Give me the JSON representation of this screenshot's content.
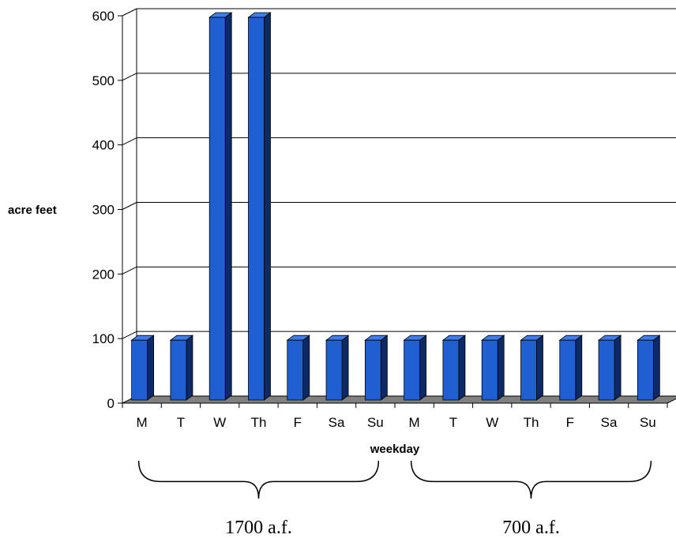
{
  "chart_data": {
    "type": "bar",
    "title": "",
    "xlabel": "weekday",
    "ylabel": "acre feet",
    "categories": [
      "M",
      "T",
      "W",
      "Th",
      "F",
      "Sa",
      "Su",
      "M",
      "T",
      "W",
      "Th",
      "F",
      "Sa",
      "Su"
    ],
    "values": [
      100,
      100,
      600,
      600,
      100,
      100,
      100,
      100,
      100,
      100,
      100,
      100,
      100,
      100
    ],
    "ylim": [
      0,
      600
    ],
    "yticks": [
      "0",
      "100",
      "200",
      "300",
      "400",
      "500",
      "600"
    ],
    "grid": true,
    "legend": "none",
    "bar_color": "#1f5fd1",
    "groups": [
      {
        "label": "1700 a.f.",
        "start": 0,
        "end": 6
      },
      {
        "label": "700 a.f.",
        "start": 7,
        "end": 13
      }
    ]
  },
  "colors": {
    "bar_front": "#1f5fd1",
    "bar_side": "#0c2a66",
    "bar_top": "#3d7ee8",
    "floor": "#808080"
  }
}
